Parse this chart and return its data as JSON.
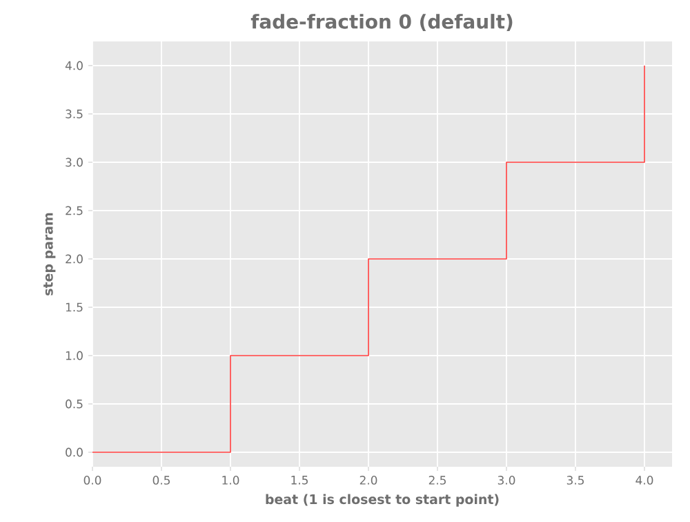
{
  "chart_data": {
    "type": "step",
    "title": "fade-fraction 0 (default)",
    "xlabel": "beat (1 is closest to start point)",
    "ylabel": "step param",
    "x": [
      0,
      1,
      2,
      3,
      4
    ],
    "series": [
      {
        "color": "#ff3b3b",
        "values": [
          0,
          1,
          2,
          3,
          4
        ]
      }
    ],
    "xlim": [
      0,
      4.2
    ],
    "ylim": [
      -0.15,
      4.25
    ],
    "xticks": [
      {
        "value": 0,
        "label": "0.0"
      },
      {
        "value": 0.5,
        "label": "0.5"
      },
      {
        "value": 1,
        "label": "1.0"
      },
      {
        "value": 1.5,
        "label": "1.5"
      },
      {
        "value": 2,
        "label": "2.0"
      },
      {
        "value": 2.5,
        "label": "2.5"
      },
      {
        "value": 3,
        "label": "3.0"
      },
      {
        "value": 3.5,
        "label": "3.5"
      },
      {
        "value": 4,
        "label": "4.0"
      }
    ],
    "yticks": [
      {
        "value": 0,
        "label": "0.0"
      },
      {
        "value": 0.5,
        "label": "0.5"
      },
      {
        "value": 1,
        "label": "1.0"
      },
      {
        "value": 1.5,
        "label": "1.5"
      },
      {
        "value": 2,
        "label": "2.0"
      },
      {
        "value": 2.5,
        "label": "2.5"
      },
      {
        "value": 3,
        "label": "3.0"
      },
      {
        "value": 3.5,
        "label": "3.5"
      },
      {
        "value": 4,
        "label": "4.0"
      }
    ],
    "grid": true,
    "marker": "none",
    "line_style": "solid"
  }
}
